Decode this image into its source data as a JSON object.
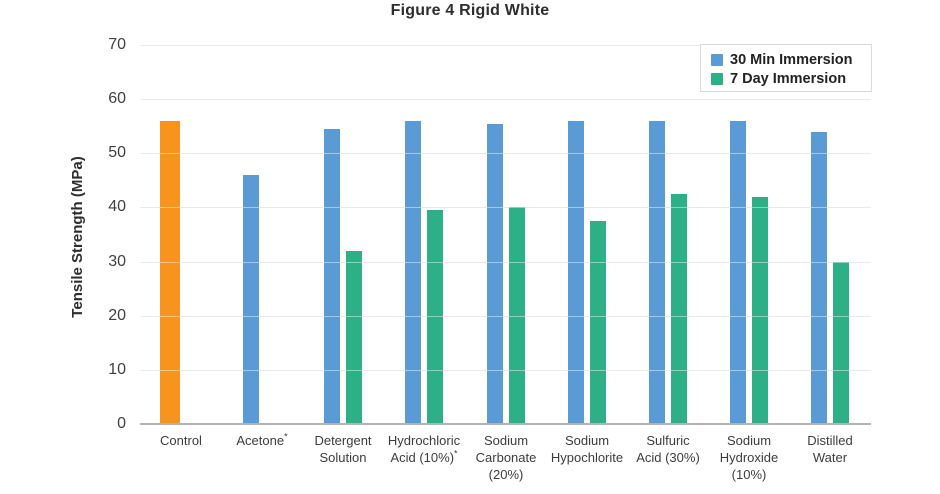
{
  "title": "Figure 4 Rigid White",
  "y_axis": {
    "label": "Tensile Strength (MPa)",
    "ticks": [
      70,
      60,
      50,
      40,
      30,
      20,
      10,
      0
    ]
  },
  "legend": [
    {
      "label": "30 Min Immersion",
      "color": "#5b9bd5"
    },
    {
      "label": "7 Day Immersion",
      "color": "#2eb086"
    }
  ],
  "colors": {
    "blue": "#5b9bd5",
    "green": "#2eb086",
    "orange": "#f7941e",
    "gridline": "#d9d9d9",
    "axis_line": "#b3b3b3",
    "text_dark": "#2e2e2e",
    "text_tick": "#404040"
  },
  "chart_data": {
    "type": "bar",
    "title": "Figure 4 Rigid White",
    "xlabel": "",
    "ylabel": "Tensile Strength (MPa)",
    "ylim": [
      0,
      70
    ],
    "grid": true,
    "legend_position": "top-right",
    "categories": [
      "Control",
      "Acetone*",
      "Detergent Solution",
      "Hydrochloric Acid (10%)*",
      "Sodium Carbonate (20%)",
      "Sodium Hypochlorite",
      "Sulfuric Acid (30%)",
      "Sodium Hydroxide (10%)",
      "Distilled Water"
    ],
    "category_label_lines": [
      [
        "Control"
      ],
      [
        "Acetone*"
      ],
      [
        "Detergent",
        "Solution"
      ],
      [
        "Hydrochloric",
        "Acid (10%)*"
      ],
      [
        "Sodium",
        "Carbonate",
        "(20%)"
      ],
      [
        "Sodium",
        "Hypochlorite"
      ],
      [
        "Sulfuric",
        "Acid (30%)"
      ],
      [
        "Sodium",
        "Hydroxide",
        "(10%)"
      ],
      [
        "Distilled",
        "Water"
      ]
    ],
    "control_bar": {
      "category": "Control",
      "value": 56,
      "color": "#f7941e"
    },
    "series": [
      {
        "name": "30 Min Immersion",
        "color": "#5b9bd5",
        "values": [
          null,
          46,
          54.5,
          56,
          55.5,
          56,
          56,
          56,
          54
        ]
      },
      {
        "name": "7 Day Immersion",
        "color": "#2eb086",
        "values": [
          null,
          null,
          32,
          39.5,
          40,
          37.5,
          42.5,
          42,
          30
        ]
      }
    ]
  }
}
